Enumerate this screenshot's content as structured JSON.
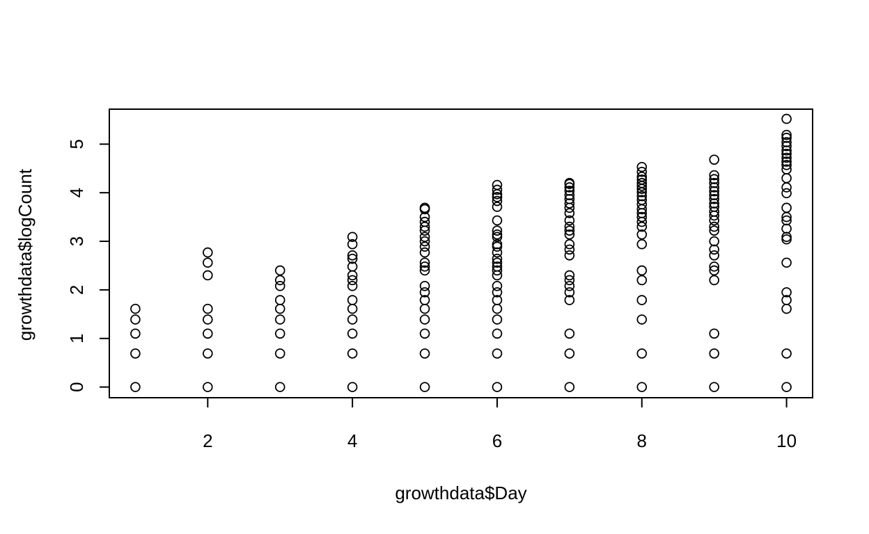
{
  "chart_data": {
    "type": "scatter",
    "title": "",
    "xlabel": "growthdata$Day",
    "ylabel": "growthdata$logCount",
    "xlim": [
      0.64,
      10.36
    ],
    "ylim": [
      -0.22,
      5.72
    ],
    "x_ticks": [
      2,
      4,
      6,
      8,
      10
    ],
    "y_ticks": [
      0,
      1,
      2,
      3,
      4,
      5
    ],
    "x_tick_labels": [
      "2",
      "4",
      "6",
      "8",
      "10"
    ],
    "y_tick_labels": [
      "0",
      "1",
      "2",
      "3",
      "4",
      "5"
    ],
    "grid": false,
    "marker": "open-circle",
    "point_color": "#000000",
    "series": [
      {
        "points": [
          [
            1,
            0
          ],
          [
            1,
            0.69
          ],
          [
            1,
            1.1
          ],
          [
            1,
            1.39
          ],
          [
            1,
            1.61
          ],
          [
            2,
            0
          ],
          [
            2,
            0.69
          ],
          [
            2,
            1.1
          ],
          [
            2,
            1.39
          ],
          [
            2,
            1.61
          ],
          [
            2,
            2.3
          ],
          [
            2,
            2.56
          ],
          [
            2,
            2.77
          ],
          [
            3,
            0
          ],
          [
            3,
            0.69
          ],
          [
            3,
            1.1
          ],
          [
            3,
            1.39
          ],
          [
            3,
            1.61
          ],
          [
            3,
            1.79
          ],
          [
            3,
            2.08
          ],
          [
            3,
            2.2
          ],
          [
            3,
            2.4
          ],
          [
            4,
            0
          ],
          [
            4,
            0.69
          ],
          [
            4,
            1.1
          ],
          [
            4,
            1.39
          ],
          [
            4,
            1.61
          ],
          [
            4,
            1.79
          ],
          [
            4,
            2.08
          ],
          [
            4,
            2.2
          ],
          [
            4,
            2.3
          ],
          [
            4,
            2.48
          ],
          [
            4,
            2.64
          ],
          [
            4,
            2.71
          ],
          [
            4,
            2.94
          ],
          [
            4,
            3.09
          ],
          [
            5,
            0
          ],
          [
            5,
            0.69
          ],
          [
            5,
            1.1
          ],
          [
            5,
            1.39
          ],
          [
            5,
            1.61
          ],
          [
            5,
            1.79
          ],
          [
            5,
            1.95
          ],
          [
            5,
            2.08
          ],
          [
            5,
            2.4
          ],
          [
            5,
            2.48
          ],
          [
            5,
            2.56
          ],
          [
            5,
            2.77
          ],
          [
            5,
            2.89
          ],
          [
            5,
            3.0
          ],
          [
            5,
            3.09
          ],
          [
            5,
            3.22
          ],
          [
            5,
            3.3
          ],
          [
            5,
            3.4
          ],
          [
            5,
            3.5
          ],
          [
            5,
            3.66
          ],
          [
            5,
            3.69
          ],
          [
            6,
            0
          ],
          [
            6,
            0.69
          ],
          [
            6,
            1.1
          ],
          [
            6,
            1.39
          ],
          [
            6,
            1.61
          ],
          [
            6,
            1.79
          ],
          [
            6,
            1.95
          ],
          [
            6,
            2.08
          ],
          [
            6,
            2.3
          ],
          [
            6,
            2.4
          ],
          [
            6,
            2.48
          ],
          [
            6,
            2.56
          ],
          [
            6,
            2.64
          ],
          [
            6,
            2.77
          ],
          [
            6,
            2.89
          ],
          [
            6,
            2.94
          ],
          [
            6,
            3.09
          ],
          [
            6,
            3.14
          ],
          [
            6,
            3.22
          ],
          [
            6,
            3.43
          ],
          [
            6,
            3.71
          ],
          [
            6,
            3.83
          ],
          [
            6,
            3.91
          ],
          [
            6,
            3.97
          ],
          [
            6,
            4.06
          ],
          [
            6,
            4.16
          ],
          [
            7,
            0
          ],
          [
            7,
            0.69
          ],
          [
            7,
            1.1
          ],
          [
            7,
            1.79
          ],
          [
            7,
            1.95
          ],
          [
            7,
            2.08
          ],
          [
            7,
            2.2
          ],
          [
            7,
            2.3
          ],
          [
            7,
            2.71
          ],
          [
            7,
            2.83
          ],
          [
            7,
            2.94
          ],
          [
            7,
            3.14
          ],
          [
            7,
            3.22
          ],
          [
            7,
            3.3
          ],
          [
            7,
            3.43
          ],
          [
            7,
            3.58
          ],
          [
            7,
            3.69
          ],
          [
            7,
            3.78
          ],
          [
            7,
            3.87
          ],
          [
            7,
            3.95
          ],
          [
            7,
            4.04
          ],
          [
            7,
            4.11
          ],
          [
            7,
            4.18
          ],
          [
            7,
            4.2
          ],
          [
            8,
            0
          ],
          [
            8,
            0.69
          ],
          [
            8,
            1.39
          ],
          [
            8,
            1.79
          ],
          [
            8,
            2.2
          ],
          [
            8,
            2.4
          ],
          [
            8,
            2.94
          ],
          [
            8,
            3.14
          ],
          [
            8,
            3.3
          ],
          [
            8,
            3.4
          ],
          [
            8,
            3.5
          ],
          [
            8,
            3.58
          ],
          [
            8,
            3.66
          ],
          [
            8,
            3.76
          ],
          [
            8,
            3.85
          ],
          [
            8,
            3.93
          ],
          [
            8,
            4.01
          ],
          [
            8,
            4.08
          ],
          [
            8,
            4.14
          ],
          [
            8,
            4.2
          ],
          [
            8,
            4.27
          ],
          [
            8,
            4.33
          ],
          [
            8,
            4.43
          ],
          [
            8,
            4.53
          ],
          [
            9,
            0
          ],
          [
            9,
            0.69
          ],
          [
            9,
            1.1
          ],
          [
            9,
            2.2
          ],
          [
            9,
            2.4
          ],
          [
            9,
            2.48
          ],
          [
            9,
            2.71
          ],
          [
            9,
            2.83
          ],
          [
            9,
            3.0
          ],
          [
            9,
            3.22
          ],
          [
            9,
            3.3
          ],
          [
            9,
            3.43
          ],
          [
            9,
            3.53
          ],
          [
            9,
            3.61
          ],
          [
            9,
            3.71
          ],
          [
            9,
            3.78
          ],
          [
            9,
            3.87
          ],
          [
            9,
            3.95
          ],
          [
            9,
            4.03
          ],
          [
            9,
            4.11
          ],
          [
            9,
            4.2
          ],
          [
            9,
            4.28
          ],
          [
            9,
            4.36
          ],
          [
            9,
            4.68
          ],
          [
            10,
            0
          ],
          [
            10,
            0.69
          ],
          [
            10,
            1.61
          ],
          [
            10,
            1.79
          ],
          [
            10,
            1.95
          ],
          [
            10,
            2.56
          ],
          [
            10,
            3.04
          ],
          [
            10,
            3.09
          ],
          [
            10,
            3.26
          ],
          [
            10,
            3.43
          ],
          [
            10,
            3.5
          ],
          [
            10,
            3.69
          ],
          [
            10,
            3.99
          ],
          [
            10,
            4.11
          ],
          [
            10,
            4.3
          ],
          [
            10,
            4.48
          ],
          [
            10,
            4.57
          ],
          [
            10,
            4.64
          ],
          [
            10,
            4.72
          ],
          [
            10,
            4.8
          ],
          [
            10,
            4.87
          ],
          [
            10,
            4.96
          ],
          [
            10,
            5.04
          ],
          [
            10,
            5.13
          ],
          [
            10,
            5.19
          ],
          [
            10,
            5.52
          ]
        ]
      }
    ]
  }
}
